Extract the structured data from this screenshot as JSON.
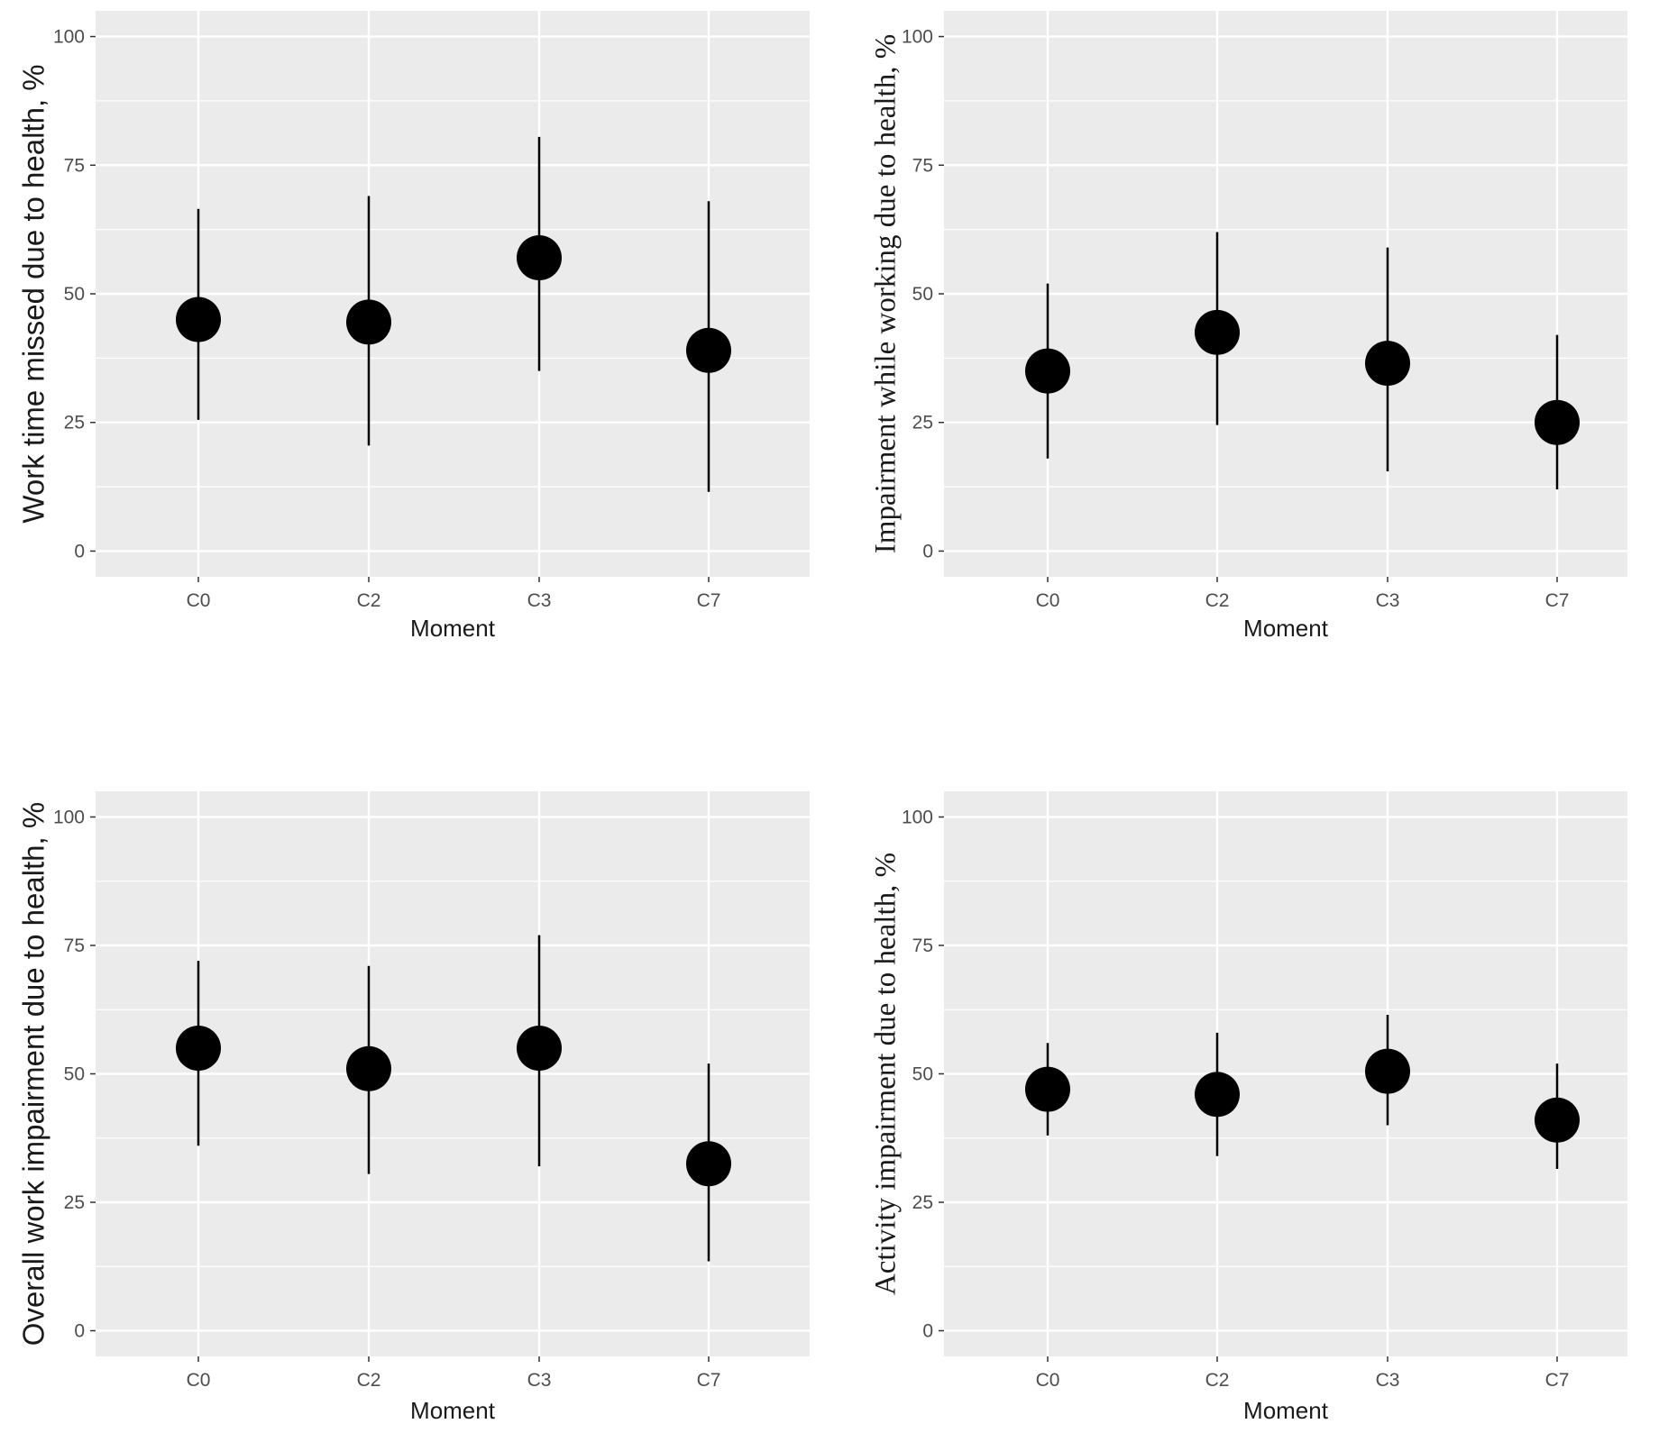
{
  "chart_data": [
    {
      "type": "scatter",
      "title": "",
      "xlabel": "Moment",
      "ylabel": "Work time missed due to health, %",
      "categories": [
        "C0",
        "C2",
        "C3",
        "C7"
      ],
      "values": [
        45,
        44.5,
        57,
        39
      ],
      "error_low": [
        25.5,
        20.5,
        35,
        11.5
      ],
      "error_high": [
        66.5,
        69,
        80.5,
        68
      ],
      "ylim": [
        -5,
        105
      ],
      "yticks": [
        0,
        25,
        50,
        75,
        100
      ],
      "ytick_labels": [
        "0",
        "25",
        "50",
        "75",
        "100"
      ],
      "grid": true
    },
    {
      "type": "scatter",
      "title": "",
      "xlabel": "Moment",
      "ylabel": "Impairment while working due to health, %",
      "categories": [
        "C0",
        "C2",
        "C3",
        "C7"
      ],
      "values": [
        35,
        42.5,
        36.5,
        25
      ],
      "error_low": [
        18,
        24.5,
        15.5,
        12
      ],
      "error_high": [
        52,
        62,
        59,
        42
      ],
      "ylim": [
        -5,
        105
      ],
      "yticks": [
        0,
        25,
        50,
        75,
        100
      ],
      "ytick_labels": [
        "0",
        "25",
        "50",
        "75",
        "100"
      ],
      "grid": true
    },
    {
      "type": "scatter",
      "title": "",
      "xlabel": "Moment",
      "ylabel": "Overall work impairment due to health, %",
      "categories": [
        "C0",
        "C2",
        "C3",
        "C7"
      ],
      "values": [
        55,
        51,
        55,
        32.5
      ],
      "error_low": [
        36,
        30.5,
        32,
        13.5
      ],
      "error_high": [
        72,
        71,
        77,
        52
      ],
      "ylim": [
        -5,
        105
      ],
      "yticks": [
        0,
        25,
        50,
        75,
        100
      ],
      "ytick_labels": [
        "0",
        "25",
        "50",
        "75",
        "100"
      ],
      "grid": true
    },
    {
      "type": "scatter",
      "title": "",
      "xlabel": "Moment",
      "ylabel": "Activity impairment due to health, %",
      "categories": [
        "C0",
        "C2",
        "C3",
        "C7"
      ],
      "values": [
        47,
        46,
        50.5,
        41
      ],
      "error_low": [
        38,
        34,
        40,
        31.5
      ],
      "error_high": [
        56,
        58,
        61.5,
        52
      ],
      "ylim": [
        -5,
        105
      ],
      "yticks": [
        0,
        25,
        50,
        75,
        100
      ],
      "ytick_labels": [
        "0",
        "25",
        "50",
        "75",
        "100"
      ],
      "grid": true
    }
  ],
  "colors": {
    "panel_background": "#ebebeb",
    "grid": "#ffffff",
    "point": "#000000",
    "tick_text": "#4d4d4d",
    "label_text": "#1a1a1a"
  }
}
